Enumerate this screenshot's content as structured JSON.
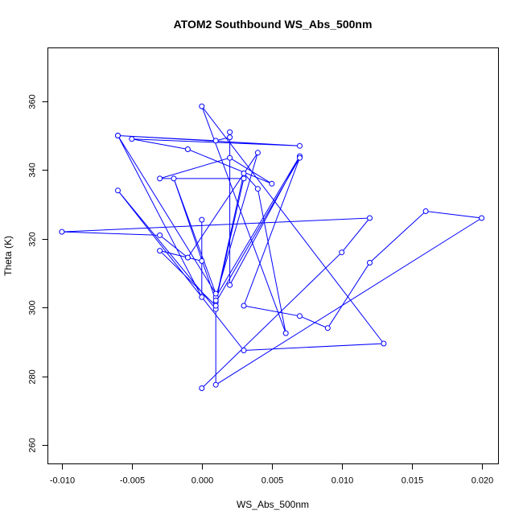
{
  "chart_data": {
    "type": "line",
    "title": "ATOM2 Southbound WS_Abs_500nm",
    "xlabel": "WS_Abs_500nm",
    "ylabel": "Theta (K)",
    "xlim": [
      -0.011,
      0.0212
    ],
    "ylim": [
      254.5,
      375.5
    ],
    "x_ticks": [
      -0.01,
      -0.005,
      0.0,
      0.005,
      0.01,
      0.015,
      0.02
    ],
    "x_tick_labels": [
      "-0.010",
      "-0.005",
      "0.000",
      "0.005",
      "0.010",
      "0.015",
      "0.020"
    ],
    "y_ticks": [
      260,
      280,
      300,
      320,
      340,
      360
    ],
    "y_tick_labels": [
      "260",
      "280",
      "300",
      "320",
      "340",
      "360"
    ],
    "grid": false,
    "markers": "open-circle",
    "series": [
      {
        "color": "#0000ff",
        "points": [
          [
            0.0,
            276.5
          ],
          [
            0.01,
            316.0
          ],
          [
            0.012,
            326.0
          ],
          [
            -0.01,
            322.0
          ],
          [
            -0.003,
            321.0
          ],
          [
            -0.001,
            314.5
          ],
          [
            0.004,
            345.0
          ],
          [
            0.001,
            303.0
          ],
          [
            0.007,
            344.0
          ],
          [
            0.002,
            306.5
          ],
          [
            0.002,
            351.0
          ],
          [
            0.002,
            349.5
          ],
          [
            0.001,
            348.5
          ],
          [
            -0.006,
            350.0
          ],
          [
            0.007,
            347.0
          ],
          [
            -0.005,
            349.0
          ],
          [
            -0.001,
            346.0
          ],
          [
            0.005,
            336.0
          ],
          [
            0.002,
            343.5
          ],
          [
            -0.003,
            337.5
          ],
          [
            0.003,
            337.5
          ],
          [
            0.001,
            301.5
          ],
          [
            0.007,
            343.5
          ],
          [
            0.003,
            300.5
          ],
          [
            0.007,
            297.5
          ],
          [
            0.009,
            294.0
          ],
          [
            0.012,
            313.0
          ],
          [
            0.016,
            328.0
          ],
          [
            0.02,
            326.0
          ],
          [
            0.001,
            277.5
          ],
          [
            0.001,
            299.5
          ],
          [
            -0.006,
            334.0
          ],
          [
            0.003,
            287.5
          ],
          [
            0.013,
            289.5
          ],
          [
            0.0,
            358.5
          ],
          [
            0.006,
            292.5
          ],
          [
            0.004,
            334.5
          ],
          [
            0.003,
            339.0
          ],
          [
            0.001,
            302.0
          ],
          [
            -0.002,
            337.5
          ],
          [
            0.001,
            304.0
          ],
          [
            -0.006,
            350.0
          ],
          [
            0.0,
            303.0
          ],
          [
            0.0,
            325.5
          ],
          [
            0.0,
            313.5
          ],
          [
            -0.003,
            316.5
          ],
          [
            0.001,
            300.5
          ]
        ]
      }
    ]
  }
}
